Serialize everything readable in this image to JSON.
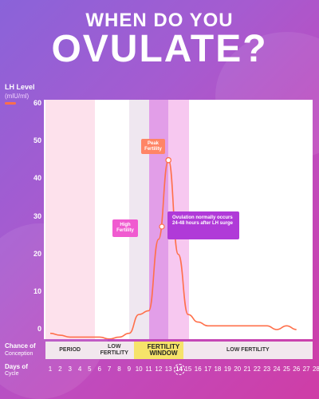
{
  "header": {
    "line1": "WHEN DO YOU",
    "line2": "OVULATE?"
  },
  "legend": {
    "title": "LH Level",
    "unit": "(mlU/ml)",
    "color": "#ff6f4a"
  },
  "labels": {
    "chance_title": "Chance of",
    "chance_sub": "Conception",
    "days_title": "Days of",
    "days_sub": "Cycle",
    "peak": "Peak Fertility",
    "high": "High Fertility",
    "ovulation": "Ovulation normally occurs 24-48 hours after LH surge"
  },
  "fertility_bar": [
    {
      "label": "PERIOD",
      "from": 1,
      "to": 5,
      "color": "#f2e7ee"
    },
    {
      "label": "LOW FERTILITY",
      "from": 6,
      "to": 9,
      "color": "#f2e7ee"
    },
    {
      "label": "FERTILITY WINDOW",
      "from": 10,
      "to": 15,
      "color": "#f6e36a"
    },
    {
      "label": "LOW FERTILITY",
      "from": 15,
      "to": 28,
      "color": "#f2e7ee"
    }
  ],
  "chart_data": {
    "type": "line",
    "x": [
      1,
      2,
      3,
      4,
      5,
      6,
      7,
      8,
      9,
      10,
      11,
      12,
      13,
      14,
      15,
      16,
      17,
      18,
      19,
      20,
      21,
      22,
      23,
      24,
      25,
      26
    ],
    "series": [
      {
        "values": [
          -1,
          -1.5,
          -2,
          -2,
          -2,
          -2,
          -2.5,
          -2,
          -1,
          4,
          5,
          24,
          45,
          20,
          4,
          2,
          1,
          1,
          1,
          1,
          1,
          1,
          1,
          0,
          1,
          0
        ]
      }
    ],
    "ylim": [
      0,
      60
    ],
    "yticks": [
      0,
      10,
      20,
      30,
      40,
      50,
      60
    ],
    "xticks": [
      1,
      2,
      3,
      4,
      5,
      6,
      7,
      8,
      9,
      10,
      11,
      12,
      13,
      14,
      15,
      16,
      17,
      18,
      19,
      20,
      21,
      22,
      23,
      24,
      25,
      26,
      27,
      28
    ],
    "highlight_day": 14,
    "phases": [
      {
        "from": 1,
        "to": 5,
        "color": "#fde1ec"
      },
      {
        "from": 9.5,
        "to": 11.5,
        "color": "#efe7f0"
      },
      {
        "from": 11.5,
        "to": 13.5,
        "color": "#e29ee8"
      },
      {
        "from": 13.5,
        "to": 14.6,
        "color": "#f7c8f0"
      }
    ],
    "colors": {
      "line": "#ff6f4a",
      "peak_box": "#ff8566",
      "high_box": "#f05bd0",
      "ovulation_box": "#b03ad8"
    }
  }
}
